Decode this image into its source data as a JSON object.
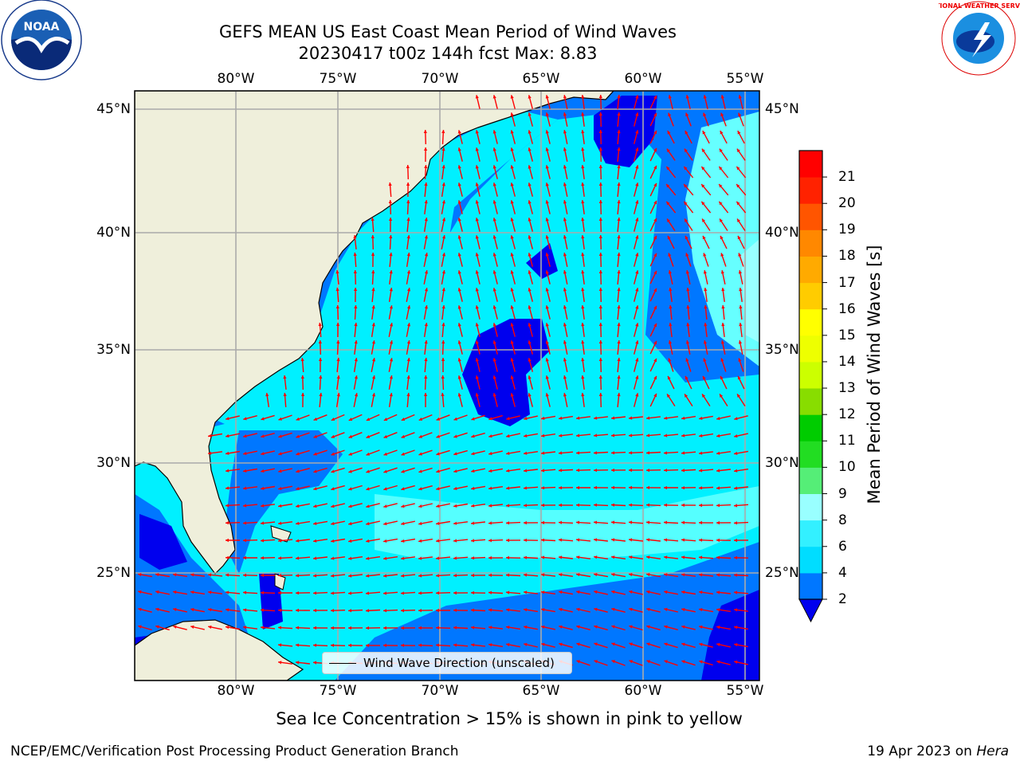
{
  "title": {
    "line1": "GEFS MEAN US East Coast Mean Period of Wind Waves",
    "line2": "20230417 t00z 144h fcst   Max: 8.83"
  },
  "map": {
    "lon_labels": [
      "80°W",
      "75°W",
      "70°W",
      "65°W",
      "60°W",
      "55°W"
    ],
    "lat_labels": [
      "45°N",
      "40°N",
      "35°N",
      "30°N",
      "25°N"
    ],
    "land_color": "#efefdb",
    "arrow_color": "#ff0000",
    "legend": "Wind Wave Direction (unscaled)"
  },
  "colorbar": {
    "label": "Mean Period of Wind Waves [s]",
    "ticks": [
      "2",
      "4",
      "6",
      "8",
      "9",
      "10",
      "11",
      "12",
      "13",
      "14",
      "15",
      "16",
      "17",
      "18",
      "19",
      "20",
      "21"
    ],
    "extend": "min",
    "colors": [
      "#0077ff",
      "#00ddff",
      "#33f0ff",
      "#99ffff",
      "#55ee77",
      "#22dd22",
      "#00cc00",
      "#88dd00",
      "#ccff00",
      "#eeff00",
      "#ffff00",
      "#ffcc00",
      "#ffaa00",
      "#ff8800",
      "#ff5500",
      "#ff2200",
      "#ff0000"
    ],
    "under_color": "#0000ee"
  },
  "note": "Sea Ice Concentration > 15% is shown in pink to yellow",
  "footer": {
    "left": "NCEP/EMC/Verification Post Processing Product Generation Branch",
    "right_date": "19 Apr 2023 on ",
    "right_host": "Hera"
  },
  "logos": {
    "left": "NOAA",
    "right": "NATIONAL WEATHER SERVICE"
  }
}
